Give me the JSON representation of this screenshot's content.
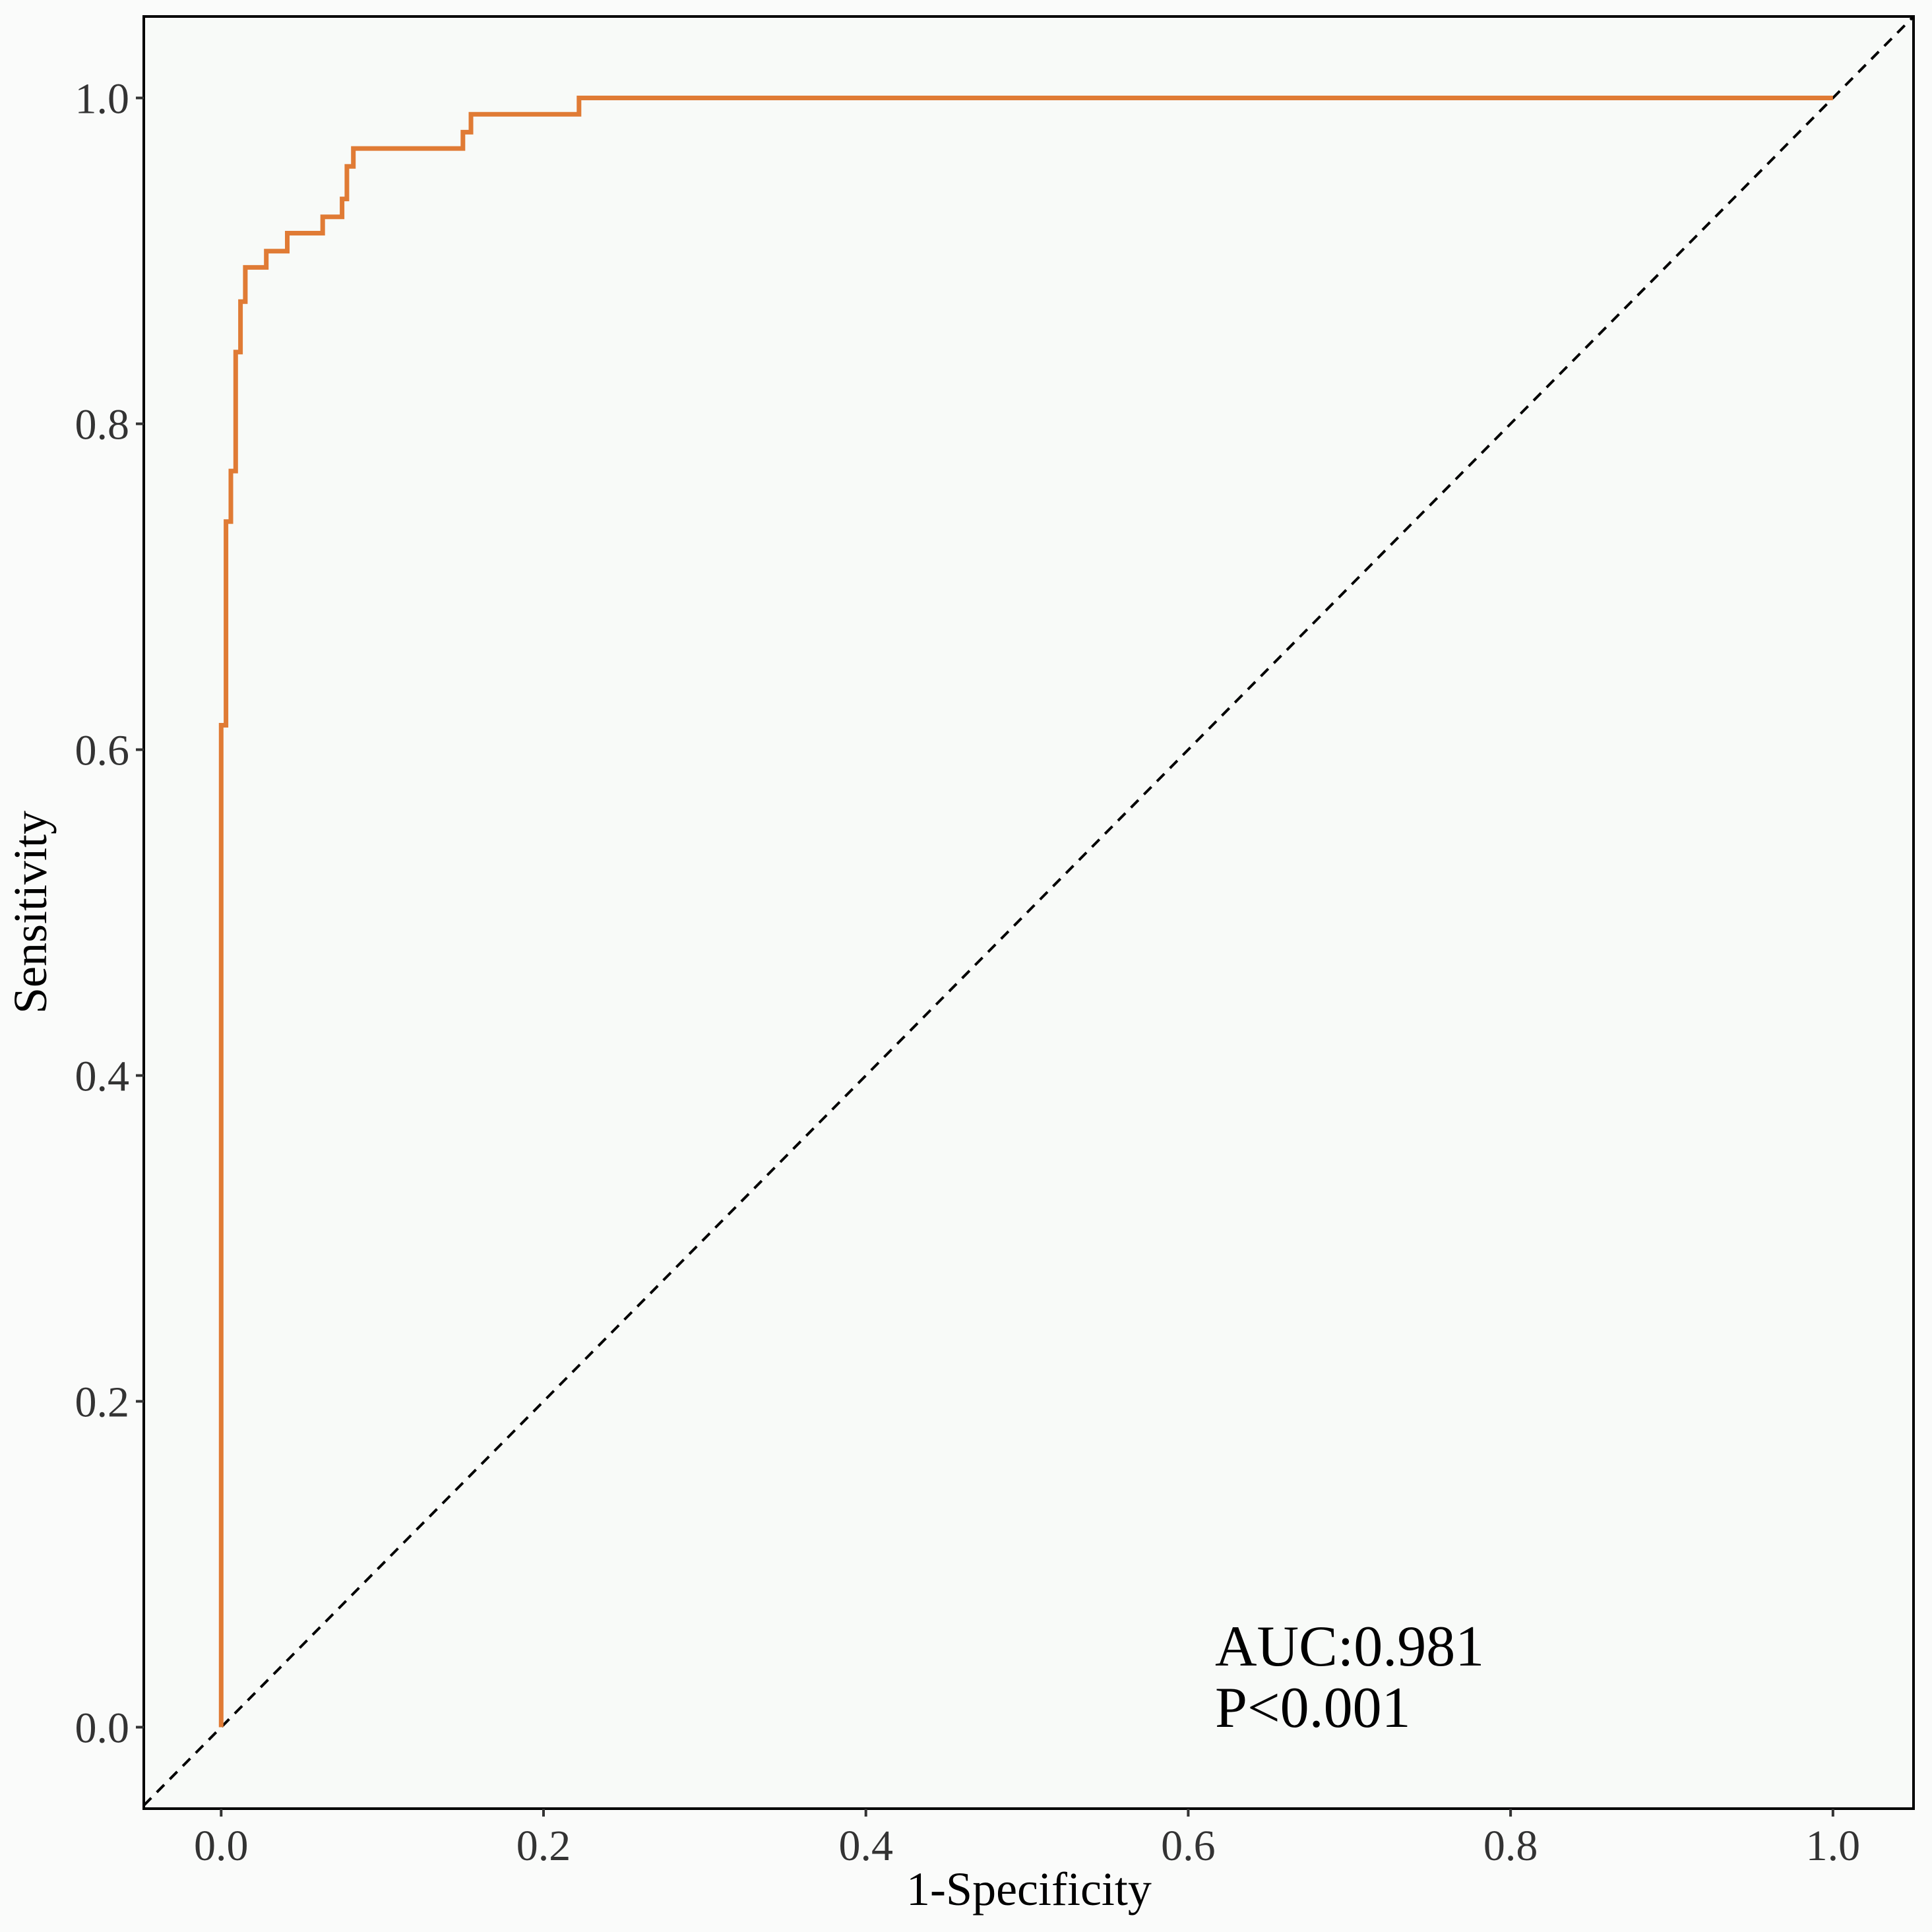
{
  "chart_data": {
    "type": "line",
    "title": "",
    "xlabel": "1-Specificity",
    "ylabel": "Sensitivity",
    "xlim": [
      -0.048,
      1.05
    ],
    "ylim": [
      -0.05,
      1.05
    ],
    "x_ticks": [
      0.0,
      0.2,
      0.4,
      0.6,
      0.8,
      1.0
    ],
    "y_ticks": [
      0.0,
      0.2,
      0.4,
      0.6,
      0.8,
      1.0
    ],
    "x_tick_labels": [
      "0.0",
      "0.2",
      "0.4",
      "0.6",
      "0.8",
      "1.0"
    ],
    "y_tick_labels": [
      "0.0",
      "0.2",
      "0.4",
      "0.6",
      "0.8",
      "1.0"
    ],
    "grid": false,
    "legend": "none",
    "series": [
      {
        "style": "solid",
        "color": "#e07b35",
        "x": [
          0.0,
          0.0,
          0.003,
          0.003,
          0.006,
          0.006,
          0.009,
          0.009,
          0.012,
          0.012,
          0.015,
          0.015,
          0.028,
          0.028,
          0.041,
          0.041,
          0.063,
          0.063,
          0.075,
          0.075,
          0.078,
          0.078,
          0.082,
          0.082,
          0.15,
          0.15,
          0.155,
          0.155,
          0.222,
          0.222,
          1.0
        ],
        "y": [
          0.0,
          0.615,
          0.615,
          0.74,
          0.74,
          0.771,
          0.771,
          0.844,
          0.844,
          0.875,
          0.875,
          0.896,
          0.896,
          0.906,
          0.906,
          0.917,
          0.917,
          0.927,
          0.927,
          0.938,
          0.938,
          0.958,
          0.958,
          0.969,
          0.969,
          0.979,
          0.979,
          0.99,
          0.99,
          1.0,
          1.0
        ]
      },
      {
        "style": "dashed",
        "color": "#000000",
        "x": [
          -0.048,
          1.05
        ],
        "y": [
          -0.048,
          1.05
        ]
      }
    ],
    "annotations": [
      "AUC:0.981",
      "P<0.001"
    ]
  }
}
